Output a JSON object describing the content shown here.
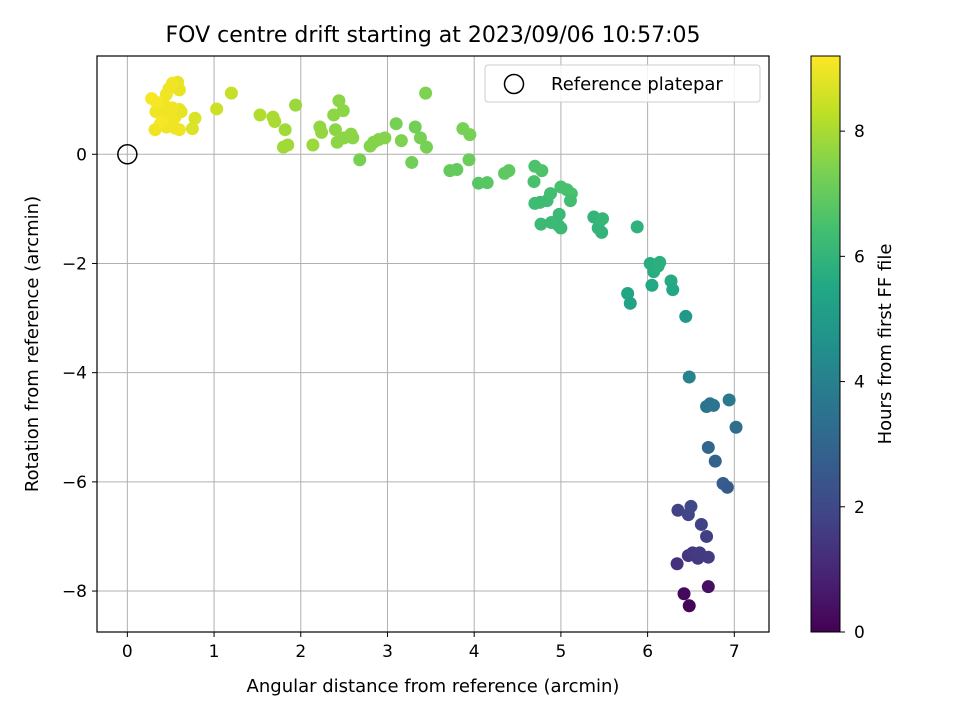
{
  "chart_data": {
    "type": "scatter",
    "title": "FOV centre drift starting at 2023/09/06 10:57:05",
    "xlabel": "Angular distance from reference (arcmin)",
    "ylabel": "Rotation from reference (arcmin)",
    "xlim": [
      -0.35,
      7.4
    ],
    "ylim": [
      -8.75,
      1.8
    ],
    "xticks": [
      0,
      1,
      2,
      3,
      4,
      5,
      6,
      7
    ],
    "yticks": [
      0,
      -2,
      -4,
      -6,
      -8
    ],
    "grid": true,
    "legend": {
      "position": "top-right",
      "label": "Reference platepar"
    },
    "reference_point": {
      "x": 0,
      "y": 0
    },
    "colorbar": {
      "label": "Hours from first FF file",
      "range": [
        0,
        9.2
      ],
      "ticks": [
        0,
        2,
        4,
        6,
        8
      ],
      "colormap": "viridis"
    },
    "points": [
      {
        "x": 6.48,
        "y": -8.27,
        "t": 0.1
      },
      {
        "x": 6.42,
        "y": -8.05,
        "t": 0.2
      },
      {
        "x": 6.7,
        "y": -7.92,
        "t": 0.4
      },
      {
        "x": 6.34,
        "y": -7.5,
        "t": 1.3
      },
      {
        "x": 6.47,
        "y": -7.35,
        "t": 1.4
      },
      {
        "x": 6.52,
        "y": -7.3,
        "t": 1.5
      },
      {
        "x": 6.58,
        "y": -7.4,
        "t": 1.5
      },
      {
        "x": 6.6,
        "y": -7.3,
        "t": 1.6
      },
      {
        "x": 6.7,
        "y": -7.38,
        "t": 1.6
      },
      {
        "x": 6.68,
        "y": -7.0,
        "t": 1.7
      },
      {
        "x": 6.62,
        "y": -6.78,
        "t": 1.8
      },
      {
        "x": 6.35,
        "y": -6.52,
        "t": 1.8
      },
      {
        "x": 6.47,
        "y": -6.6,
        "t": 1.9
      },
      {
        "x": 6.5,
        "y": -6.45,
        "t": 2.0
      },
      {
        "x": 6.87,
        "y": -6.03,
        "t": 2.7
      },
      {
        "x": 6.92,
        "y": -6.1,
        "t": 2.6
      },
      {
        "x": 6.78,
        "y": -5.62,
        "t": 2.9
      },
      {
        "x": 6.7,
        "y": -5.37,
        "t": 3.0
      },
      {
        "x": 6.68,
        "y": -4.62,
        "t": 3.5
      },
      {
        "x": 6.72,
        "y": -4.57,
        "t": 3.6
      },
      {
        "x": 6.76,
        "y": -4.6,
        "t": 3.6
      },
      {
        "x": 6.94,
        "y": -4.5,
        "t": 3.7
      },
      {
        "x": 7.02,
        "y": -5.0,
        "t": 3.3
      },
      {
        "x": 6.48,
        "y": -4.08,
        "t": 4.1
      },
      {
        "x": 6.44,
        "y": -2.97,
        "t": 4.9
      },
      {
        "x": 5.77,
        "y": -2.55,
        "t": 5.4
      },
      {
        "x": 5.8,
        "y": -2.73,
        "t": 5.3
      },
      {
        "x": 6.05,
        "y": -2.4,
        "t": 5.5
      },
      {
        "x": 6.27,
        "y": -2.32,
        "t": 5.6
      },
      {
        "x": 6.29,
        "y": -2.48,
        "t": 5.5
      },
      {
        "x": 6.03,
        "y": -2.0,
        "t": 5.7
      },
      {
        "x": 6.07,
        "y": -2.15,
        "t": 5.7
      },
      {
        "x": 6.12,
        "y": -2.05,
        "t": 5.8
      },
      {
        "x": 6.14,
        "y": -1.98,
        "t": 5.8
      },
      {
        "x": 5.88,
        "y": -1.33,
        "t": 5.9
      },
      {
        "x": 5.38,
        "y": -1.15,
        "t": 6.0
      },
      {
        "x": 5.43,
        "y": -1.35,
        "t": 6.0
      },
      {
        "x": 5.47,
        "y": -1.43,
        "t": 6.0
      },
      {
        "x": 5.45,
        "y": -1.22,
        "t": 6.0
      },
      {
        "x": 5.48,
        "y": -1.18,
        "t": 6.1
      },
      {
        "x": 4.98,
        "y": -1.1,
        "t": 6.2
      },
      {
        "x": 4.97,
        "y": -1.3,
        "t": 6.2
      },
      {
        "x": 5.0,
        "y": -1.35,
        "t": 6.2
      },
      {
        "x": 4.89,
        "y": -1.25,
        "t": 6.2
      },
      {
        "x": 4.77,
        "y": -1.28,
        "t": 6.2
      },
      {
        "x": 4.7,
        "y": -0.9,
        "t": 6.3
      },
      {
        "x": 4.76,
        "y": -0.88,
        "t": 6.3
      },
      {
        "x": 4.84,
        "y": -0.85,
        "t": 6.3
      },
      {
        "x": 4.88,
        "y": -0.72,
        "t": 6.4
      },
      {
        "x": 4.69,
        "y": -0.5,
        "t": 6.5
      },
      {
        "x": 4.7,
        "y": -0.22,
        "t": 6.6
      },
      {
        "x": 4.78,
        "y": -0.3,
        "t": 6.6
      },
      {
        "x": 5.0,
        "y": -0.6,
        "t": 6.5
      },
      {
        "x": 5.07,
        "y": -0.65,
        "t": 6.5
      },
      {
        "x": 5.12,
        "y": -0.72,
        "t": 6.5
      },
      {
        "x": 5.11,
        "y": -0.85,
        "t": 6.4
      },
      {
        "x": 4.05,
        "y": -0.53,
        "t": 6.8
      },
      {
        "x": 4.15,
        "y": -0.52,
        "t": 6.8
      },
      {
        "x": 4.35,
        "y": -0.35,
        "t": 6.9
      },
      {
        "x": 4.4,
        "y": -0.3,
        "t": 6.9
      },
      {
        "x": 3.72,
        "y": -0.3,
        "t": 7.0
      },
      {
        "x": 3.8,
        "y": -0.28,
        "t": 7.0
      },
      {
        "x": 3.94,
        "y": -0.1,
        "t": 7.1
      },
      {
        "x": 3.28,
        "y": -0.15,
        "t": 7.2
      },
      {
        "x": 2.68,
        "y": -0.1,
        "t": 7.3
      },
      {
        "x": 3.45,
        "y": 0.13,
        "t": 7.3
      },
      {
        "x": 3.38,
        "y": 0.3,
        "t": 7.3
      },
      {
        "x": 3.32,
        "y": 0.5,
        "t": 7.2
      },
      {
        "x": 3.1,
        "y": 0.56,
        "t": 7.3
      },
      {
        "x": 3.16,
        "y": 0.25,
        "t": 7.4
      },
      {
        "x": 2.8,
        "y": 0.15,
        "t": 7.5
      },
      {
        "x": 2.84,
        "y": 0.22,
        "t": 7.5
      },
      {
        "x": 2.9,
        "y": 0.27,
        "t": 7.5
      },
      {
        "x": 2.97,
        "y": 0.3,
        "t": 7.5
      },
      {
        "x": 2.6,
        "y": 0.3,
        "t": 7.6
      },
      {
        "x": 2.58,
        "y": 0.37,
        "t": 7.6
      },
      {
        "x": 2.5,
        "y": 0.3,
        "t": 7.6
      },
      {
        "x": 2.42,
        "y": 0.22,
        "t": 7.6
      },
      {
        "x": 2.4,
        "y": 0.45,
        "t": 7.6
      },
      {
        "x": 2.38,
        "y": 0.72,
        "t": 7.6
      },
      {
        "x": 2.44,
        "y": 0.98,
        "t": 7.6
      },
      {
        "x": 2.49,
        "y": 0.8,
        "t": 7.6
      },
      {
        "x": 3.87,
        "y": 0.47,
        "t": 7.3
      },
      {
        "x": 3.95,
        "y": 0.36,
        "t": 7.3
      },
      {
        "x": 3.44,
        "y": 1.12,
        "t": 7.4
      },
      {
        "x": 2.22,
        "y": 0.5,
        "t": 7.7
      },
      {
        "x": 2.24,
        "y": 0.4,
        "t": 7.7
      },
      {
        "x": 2.14,
        "y": 0.17,
        "t": 7.8
      },
      {
        "x": 1.94,
        "y": 0.9,
        "t": 7.8
      },
      {
        "x": 1.82,
        "y": 0.45,
        "t": 7.9
      },
      {
        "x": 1.85,
        "y": 0.17,
        "t": 7.9
      },
      {
        "x": 1.8,
        "y": 0.13,
        "t": 7.9
      },
      {
        "x": 1.68,
        "y": 0.68,
        "t": 8.0
      },
      {
        "x": 1.7,
        "y": 0.6,
        "t": 8.0
      },
      {
        "x": 1.53,
        "y": 0.72,
        "t": 8.1
      },
      {
        "x": 1.2,
        "y": 1.12,
        "t": 8.4
      },
      {
        "x": 1.03,
        "y": 0.83,
        "t": 8.5
      },
      {
        "x": 0.78,
        "y": 0.66,
        "t": 8.7
      },
      {
        "x": 0.75,
        "y": 0.47,
        "t": 8.7
      },
      {
        "x": 0.62,
        "y": 0.78,
        "t": 8.8
      },
      {
        "x": 0.6,
        "y": 1.18,
        "t": 8.9
      },
      {
        "x": 0.58,
        "y": 1.32,
        "t": 8.9
      },
      {
        "x": 0.52,
        "y": 1.3,
        "t": 9.0
      },
      {
        "x": 0.48,
        "y": 1.2,
        "t": 9.0
      },
      {
        "x": 0.45,
        "y": 1.1,
        "t": 9.0
      },
      {
        "x": 0.42,
        "y": 0.92,
        "t": 9.0
      },
      {
        "x": 0.38,
        "y": 0.86,
        "t": 9.0
      },
      {
        "x": 0.33,
        "y": 0.78,
        "t": 9.0
      },
      {
        "x": 0.28,
        "y": 1.02,
        "t": 9.1
      },
      {
        "x": 0.34,
        "y": 0.95,
        "t": 9.1
      },
      {
        "x": 0.4,
        "y": 0.72,
        "t": 9.0
      },
      {
        "x": 0.46,
        "y": 0.62,
        "t": 9.0
      },
      {
        "x": 0.5,
        "y": 0.55,
        "t": 9.0
      },
      {
        "x": 0.55,
        "y": 0.48,
        "t": 9.0
      },
      {
        "x": 0.6,
        "y": 0.45,
        "t": 9.0
      },
      {
        "x": 0.45,
        "y": 0.5,
        "t": 9.0
      },
      {
        "x": 0.38,
        "y": 0.55,
        "t": 9.0
      },
      {
        "x": 0.32,
        "y": 0.45,
        "t": 9.0
      },
      {
        "x": 0.55,
        "y": 0.68,
        "t": 9.0
      },
      {
        "x": 0.48,
        "y": 0.76,
        "t": 9.0
      },
      {
        "x": 0.6,
        "y": 0.82,
        "t": 8.9
      },
      {
        "x": 0.4,
        "y": 0.6,
        "t": 9.1
      },
      {
        "x": 0.52,
        "y": 0.85,
        "t": 9.0
      }
    ]
  }
}
